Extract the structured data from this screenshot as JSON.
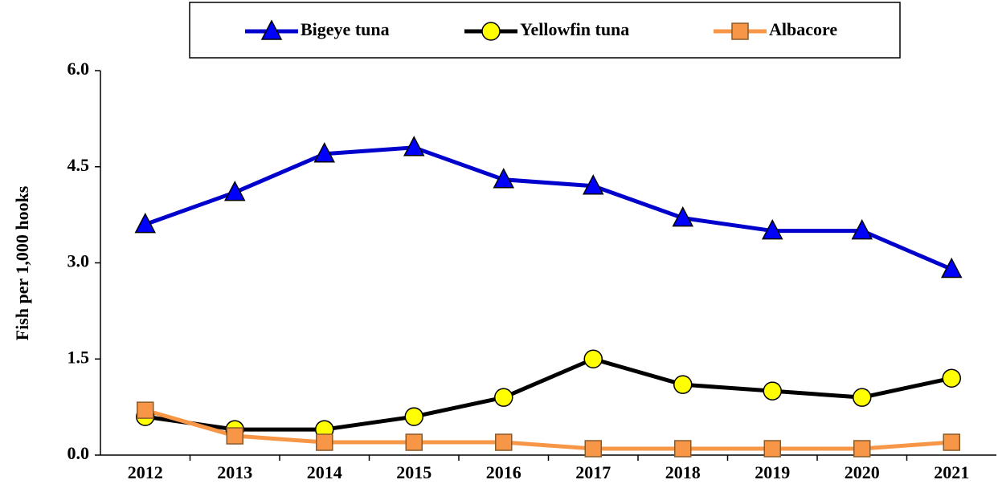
{
  "chart_data": {
    "type": "line",
    "y_label": "Fish per 1,000 hooks",
    "categories": [
      "2012",
      "2013",
      "2014",
      "2015",
      "2016",
      "2017",
      "2018",
      "2019",
      "2020",
      "2021"
    ],
    "series": [
      {
        "name": "Bigeye tuna",
        "color": "#0000cc",
        "marker": "triangle",
        "marker_color": "#0000ff",
        "values": [
          3.6,
          4.1,
          4.7,
          4.8,
          4.3,
          4.2,
          3.7,
          3.5,
          3.5,
          2.9
        ]
      },
      {
        "name": "Yellowfin tuna",
        "color": "#000000",
        "marker": "circle",
        "marker_color": "#ffff00",
        "values": [
          0.6,
          0.4,
          0.4,
          0.6,
          0.9,
          1.5,
          1.1,
          1.0,
          0.9,
          1.2
        ]
      },
      {
        "name": "Albacore",
        "color": "#f79646",
        "marker": "square",
        "marker_color": "#f79646",
        "values": [
          0.7,
          0.3,
          0.2,
          0.2,
          0.2,
          0.1,
          0.1,
          0.1,
          0.1,
          0.2
        ]
      }
    ],
    "ylim": [
      0,
      6
    ],
    "yticks": [
      {
        "value": 0,
        "label": "0.0"
      },
      {
        "value": 1.5,
        "label": "1.5"
      },
      {
        "value": 3,
        "label": "3.0"
      },
      {
        "value": 4.5,
        "label": "4.5"
      },
      {
        "value": 6,
        "label": "6.0"
      }
    ],
    "grid": false,
    "legend": "top"
  }
}
